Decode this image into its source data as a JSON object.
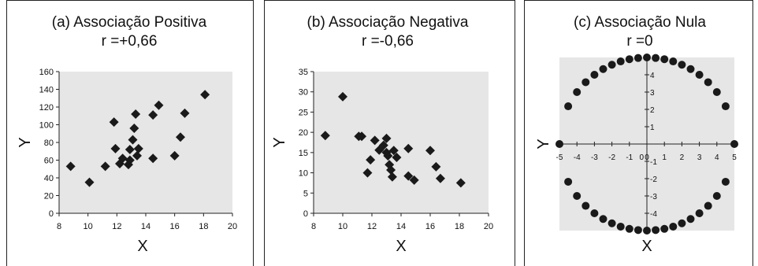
{
  "chart_data": [
    {
      "type": "scatter",
      "title": "(a) Associação Positiva",
      "subtitle": "r =+0,66",
      "xlabel": "X",
      "ylabel": "Y",
      "xlim": [
        8,
        20
      ],
      "ylim": [
        0,
        160
      ],
      "xticks": [
        8,
        10,
        12,
        14,
        16,
        18,
        20
      ],
      "yticks": [
        0,
        20,
        40,
        60,
        80,
        100,
        120,
        140,
        160
      ],
      "grid": false,
      "points": [
        [
          8.8,
          53
        ],
        [
          10.1,
          35
        ],
        [
          11.2,
          53
        ],
        [
          11.8,
          103
        ],
        [
          11.9,
          73
        ],
        [
          12.2,
          56
        ],
        [
          12.4,
          62
        ],
        [
          12.8,
          55
        ],
        [
          12.9,
          60
        ],
        [
          12.9,
          72
        ],
        [
          13.1,
          83
        ],
        [
          13.2,
          96
        ],
        [
          13.3,
          112
        ],
        [
          13.4,
          65
        ],
        [
          13.5,
          73
        ],
        [
          14.5,
          111
        ],
        [
          14.5,
          62
        ],
        [
          14.9,
          122
        ],
        [
          16.0,
          65
        ],
        [
          16.4,
          86
        ],
        [
          16.7,
          113
        ],
        [
          18.1,
          134
        ]
      ]
    },
    {
      "type": "scatter",
      "title": "(b) Associação Negativa",
      "subtitle": "r =-0,66",
      "xlabel": "X",
      "ylabel": "Y",
      "xlim": [
        8,
        20
      ],
      "ylim": [
        0,
        35
      ],
      "xticks": [
        8,
        10,
        12,
        14,
        16,
        18,
        20
      ],
      "yticks": [
        0,
        5,
        10,
        15,
        20,
        25,
        30,
        35
      ],
      "grid": false,
      "points": [
        [
          8.8,
          19.2
        ],
        [
          10.0,
          28.8
        ],
        [
          11.1,
          19.0
        ],
        [
          11.3,
          19.0
        ],
        [
          11.7,
          10.0
        ],
        [
          11.9,
          13.2
        ],
        [
          12.2,
          18.0
        ],
        [
          12.5,
          15.6
        ],
        [
          12.8,
          16.8
        ],
        [
          13.0,
          18.5
        ],
        [
          13.0,
          15.0
        ],
        [
          13.1,
          14.2
        ],
        [
          13.2,
          12.0
        ],
        [
          13.3,
          10.7
        ],
        [
          13.4,
          9.0
        ],
        [
          13.5,
          15.5
        ],
        [
          13.7,
          13.8
        ],
        [
          14.5,
          16.0
        ],
        [
          14.5,
          9.2
        ],
        [
          14.9,
          8.2
        ],
        [
          16.0,
          15.5
        ],
        [
          16.4,
          11.5
        ],
        [
          16.7,
          8.6
        ],
        [
          18.1,
          7.5
        ]
      ]
    },
    {
      "type": "scatter",
      "title": "(c) Associação Nula",
      "subtitle": "r =0",
      "xlabel": "X",
      "ylabel": "Y",
      "xlim": [
        -5,
        5
      ],
      "ylim": [
        -5,
        5
      ],
      "xticks": [
        -5,
        -4,
        -3,
        -2,
        -1,
        0,
        1,
        2,
        3,
        4,
        5
      ],
      "yticks": [
        -4,
        -3,
        -2,
        -1,
        0,
        1,
        2,
        3,
        4
      ],
      "grid": false,
      "points": [
        [
          -5,
          0
        ],
        [
          5,
          0
        ],
        [
          -4.5,
          2.18
        ],
        [
          -4,
          3
        ],
        [
          -3.5,
          3.57
        ],
        [
          -3,
          4
        ],
        [
          -2.5,
          4.33
        ],
        [
          -2,
          4.58
        ],
        [
          -1.5,
          4.77
        ],
        [
          -1,
          4.9
        ],
        [
          -0.5,
          4.97
        ],
        [
          0,
          5
        ],
        [
          0.5,
          4.97
        ],
        [
          1,
          4.9
        ],
        [
          1.5,
          4.77
        ],
        [
          2,
          4.58
        ],
        [
          2.5,
          4.33
        ],
        [
          3,
          4
        ],
        [
          3.5,
          3.57
        ],
        [
          4,
          3
        ],
        [
          4.5,
          2.18
        ],
        [
          -4.5,
          -2.18
        ],
        [
          -4,
          -3
        ],
        [
          -3.5,
          -3.57
        ],
        [
          -3,
          -4
        ],
        [
          -2.5,
          -4.33
        ],
        [
          -2,
          -4.58
        ],
        [
          -1.5,
          -4.77
        ],
        [
          -1,
          -4.9
        ],
        [
          -0.5,
          -4.97
        ],
        [
          0,
          -5
        ],
        [
          0.5,
          -4.97
        ],
        [
          1,
          -4.9
        ],
        [
          1.5,
          -4.77
        ],
        [
          2,
          -4.58
        ],
        [
          2.5,
          -4.33
        ],
        [
          3,
          -4
        ],
        [
          3.5,
          -3.57
        ],
        [
          4,
          -3
        ],
        [
          4.5,
          -2.18
        ]
      ]
    }
  ],
  "colors": {
    "plot_background": "#e6e6e6",
    "marker": "#1a1a1a",
    "frame": "#222222"
  }
}
